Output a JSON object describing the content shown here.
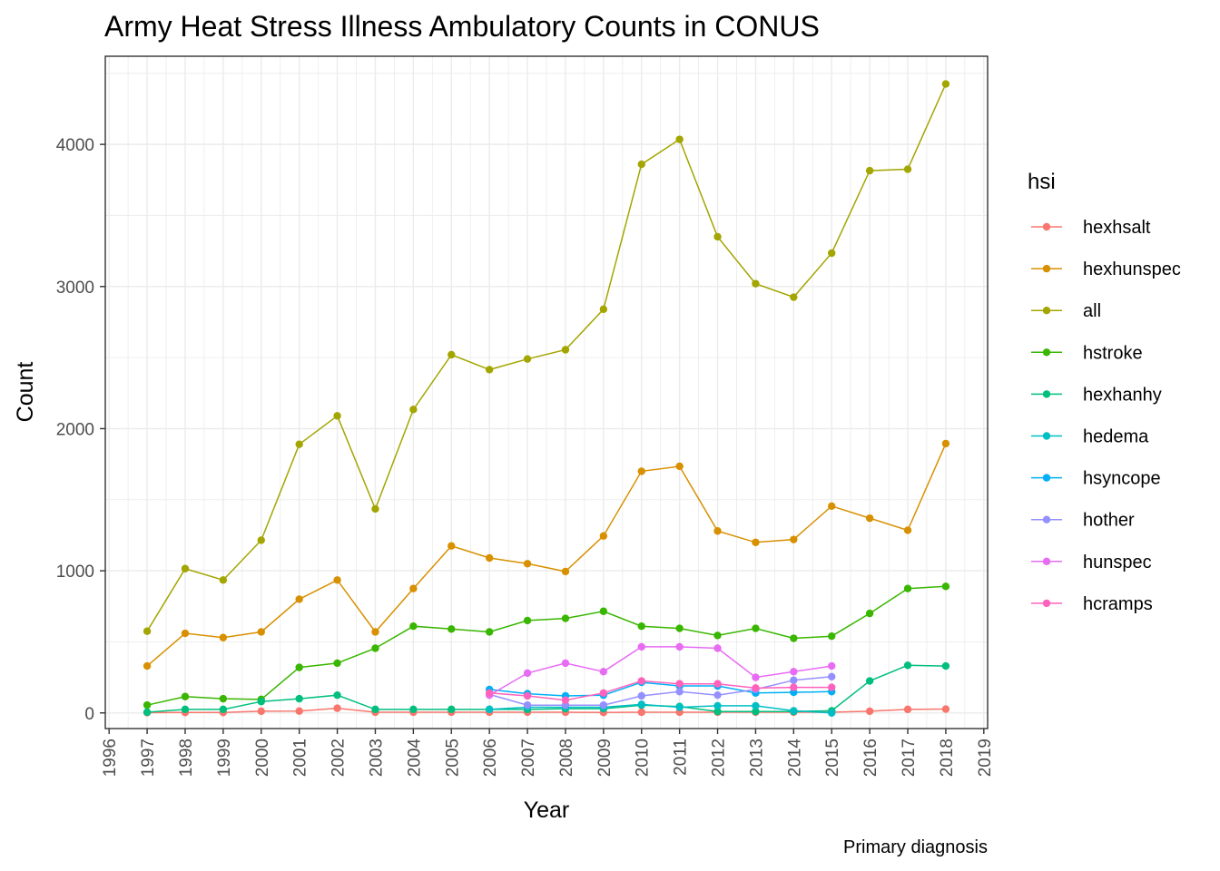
{
  "chart_data": {
    "type": "line",
    "title": "Army Heat Stress Illness Ambulatory Counts in CONUS",
    "xlabel": "Year",
    "ylabel": "Count",
    "caption": "Primary diagnosis",
    "legend_title": "hsi",
    "legend_position": "right",
    "grid": true,
    "xlim": [
      1995.9,
      2019.1
    ],
    "ylim": [
      -110,
      4620
    ],
    "x_ticks": [
      "1996",
      "1997",
      "1998",
      "1999",
      "2000",
      "2001",
      "2002",
      "2003",
      "2004",
      "2005",
      "2006",
      "2007",
      "2008",
      "2009",
      "2010",
      "2011",
      "2012",
      "2013",
      "2014",
      "2015",
      "2016",
      "2017",
      "2018",
      "2019"
    ],
    "y_ticks": [
      "0",
      "1000",
      "2000",
      "3000",
      "4000"
    ],
    "series": [
      {
        "name": "hexhsalt",
        "color": "#F8766D",
        "x": [
          1997,
          1998,
          1999,
          2000,
          2001,
          2002,
          2003,
          2004,
          2005,
          2006,
          2007,
          2008,
          2009,
          2010,
          2011,
          2012,
          2013,
          2014,
          2015,
          2016,
          2017,
          2018
        ],
        "values": [
          2,
          3,
          3,
          12,
          13,
          33,
          5,
          5,
          5,
          5,
          5,
          5,
          3,
          5,
          5,
          5,
          5,
          5,
          5,
          12,
          25,
          27
        ]
      },
      {
        "name": "hexhunspec",
        "color": "#D89000",
        "x": [
          1997,
          1998,
          1999,
          2000,
          2001,
          2002,
          2003,
          2004,
          2005,
          2006,
          2007,
          2008,
          2009,
          2010,
          2011,
          2012,
          2013,
          2014,
          2015,
          2016,
          2017,
          2018
        ],
        "values": [
          330,
          560,
          530,
          570,
          800,
          935,
          570,
          875,
          1175,
          1090,
          1050,
          995,
          1245,
          1700,
          1735,
          1280,
          1200,
          1220,
          1455,
          1370,
          1285,
          1895
        ]
      },
      {
        "name": "all",
        "color": "#A3A500",
        "x": [
          1997,
          1998,
          1999,
          2000,
          2001,
          2002,
          2003,
          2004,
          2005,
          2006,
          2007,
          2008,
          2009,
          2010,
          2011,
          2012,
          2013,
          2014,
          2015,
          2016,
          2017,
          2018
        ],
        "values": [
          575,
          1015,
          935,
          1215,
          1890,
          2090,
          1435,
          2135,
          2520,
          2415,
          2490,
          2555,
          2840,
          3860,
          4035,
          3350,
          3020,
          2925,
          3235,
          3815,
          3825,
          4425
        ]
      },
      {
        "name": "hstroke",
        "color": "#39B600",
        "x": [
          1997,
          1998,
          1999,
          2000,
          2001,
          2002,
          2003,
          2004,
          2005,
          2006,
          2007,
          2008,
          2009,
          2010,
          2011,
          2012,
          2013,
          2014,
          2015,
          2016,
          2017,
          2018
        ],
        "values": [
          55,
          115,
          100,
          95,
          320,
          350,
          455,
          610,
          590,
          570,
          650,
          665,
          715,
          610,
          595,
          545,
          595,
          525,
          540,
          700,
          875,
          890
        ]
      },
      {
        "name": "hexhanhy",
        "color": "#00BF7D",
        "x": [
          1997,
          1998,
          1999,
          2000,
          2001,
          2002,
          2003,
          2004,
          2005,
          2006,
          2007,
          2008,
          2009,
          2010,
          2011,
          2012,
          2013,
          2014,
          2015,
          2016,
          2017,
          2018
        ],
        "values": [
          5,
          25,
          25,
          80,
          100,
          125,
          25,
          25,
          25,
          25,
          25,
          30,
          30,
          55,
          45,
          10,
          10,
          10,
          15,
          225,
          335,
          330
        ]
      },
      {
        "name": "hedema",
        "color": "#00BFC4",
        "x": [
          2006,
          2007,
          2008,
          2009,
          2010,
          2011,
          2012,
          2013,
          2014,
          2015
        ],
        "values": [
          25,
          40,
          40,
          40,
          60,
          40,
          50,
          50,
          15,
          0
        ]
      },
      {
        "name": "hsyncope",
        "color": "#00B0F6",
        "x": [
          2006,
          2007,
          2008,
          2009,
          2010,
          2011,
          2012,
          2013,
          2014,
          2015
        ],
        "values": [
          165,
          135,
          120,
          125,
          215,
          190,
          190,
          140,
          145,
          150
        ]
      },
      {
        "name": "hother",
        "color": "#9590FF",
        "x": [
          2006,
          2007,
          2008,
          2009,
          2010,
          2011,
          2012,
          2013,
          2014,
          2015
        ],
        "values": [
          130,
          55,
          55,
          55,
          120,
          150,
          125,
          165,
          230,
          255
        ]
      },
      {
        "name": "hunspec",
        "color": "#E76BF3",
        "x": [
          2006,
          2007,
          2008,
          2009,
          2010,
          2011,
          2012,
          2013,
          2014,
          2015
        ],
        "values": [
          125,
          280,
          350,
          290,
          465,
          465,
          455,
          250,
          290,
          330
        ]
      },
      {
        "name": "hcramps",
        "color": "#FF62BC",
        "x": [
          2006,
          2007,
          2008,
          2009,
          2010,
          2011,
          2012,
          2013,
          2014,
          2015
        ],
        "values": [
          140,
          120,
          90,
          140,
          225,
          205,
          205,
          175,
          180,
          180
        ]
      }
    ]
  }
}
